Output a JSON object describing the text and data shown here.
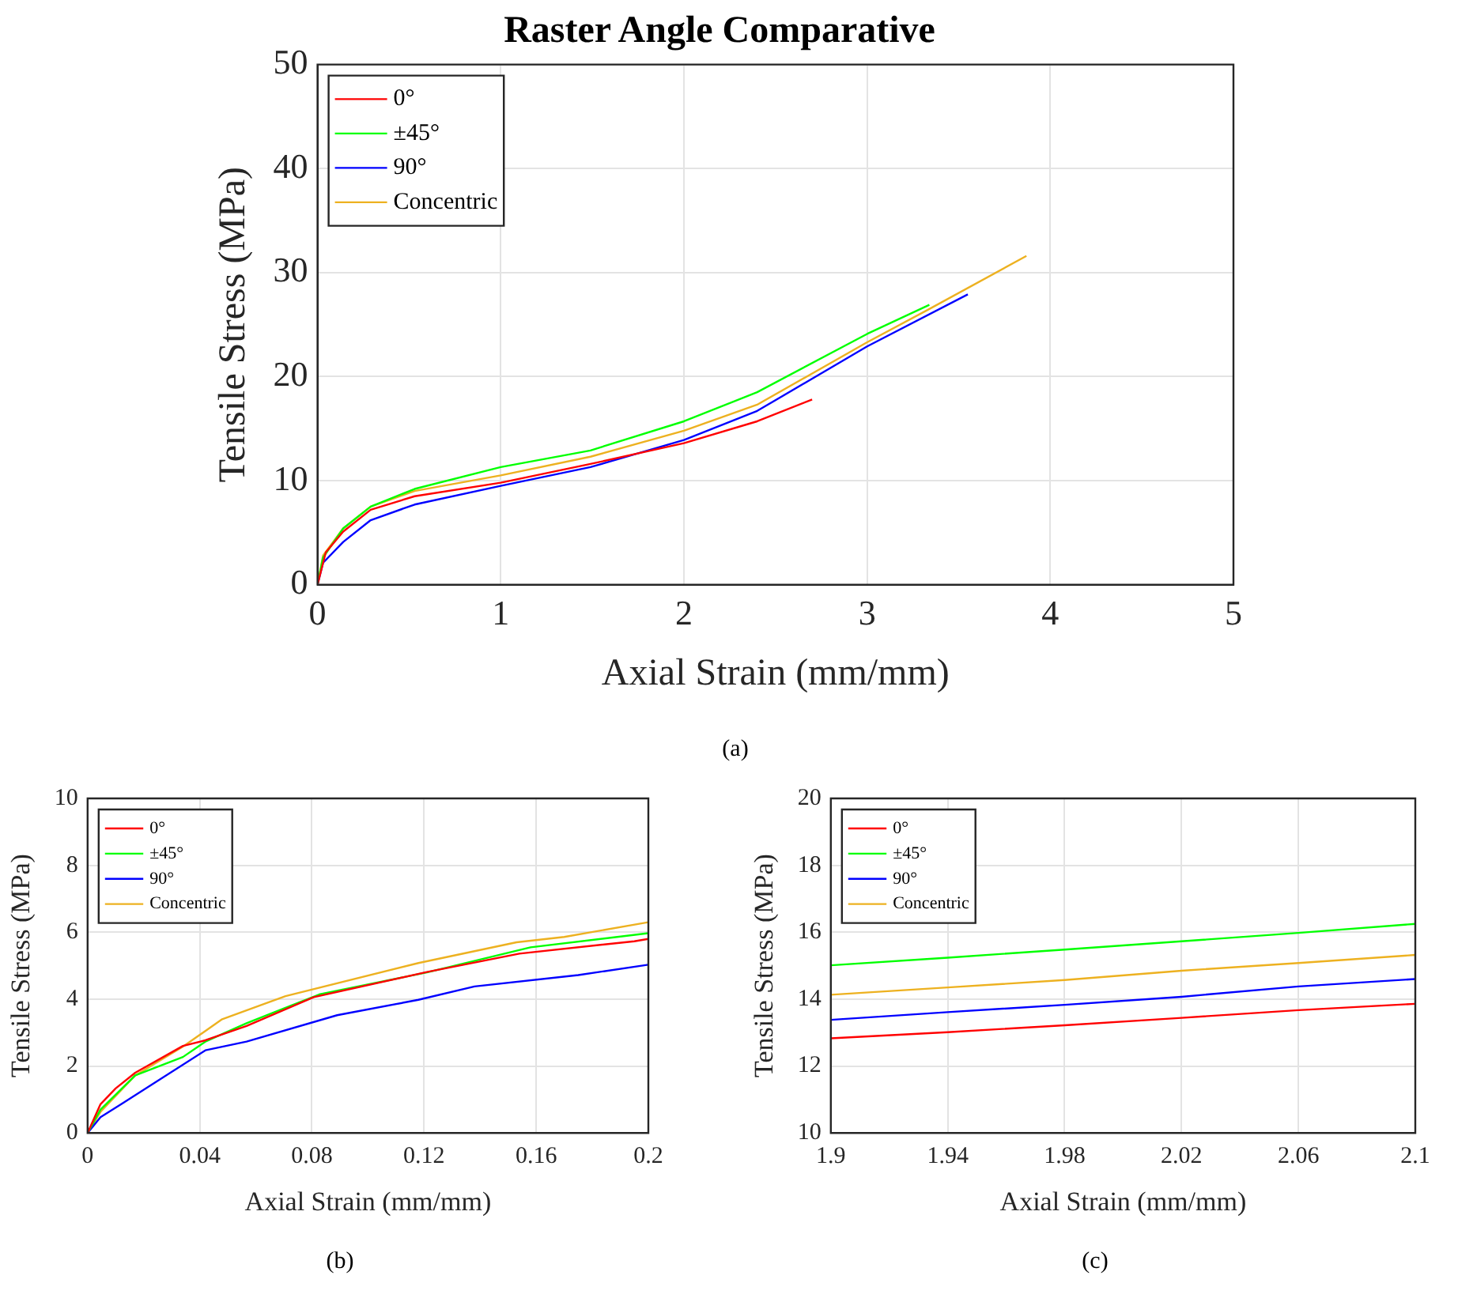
{
  "chart_data": [
    {
      "type": "line",
      "title": "Raster Angle Comparative",
      "xlabel": "Axial Strain (mm/mm)",
      "ylabel": "Tensile Stress (MPa)",
      "annotations": [
        "(a)"
      ],
      "xlim": [
        0,
        5
      ],
      "xticks": [
        0,
        1,
        2,
        3,
        4,
        5
      ],
      "ylim": [
        0,
        50
      ],
      "yticks": [
        0,
        10,
        20,
        30,
        40,
        50
      ],
      "grid": true,
      "legend": "top left",
      "line_style": "solid",
      "marker": "none",
      "series": [
        {
          "name": "0°",
          "color": "#ff0000",
          "x": [
            0,
            0.045,
            0.14,
            0.29,
            0.53,
            1.0,
            1.49,
            2.0,
            2.4,
            2.7
          ],
          "values": [
            0,
            3.1,
            5.1,
            7.2,
            8.5,
            9.8,
            11.6,
            13.6,
            15.7,
            17.8
          ]
        },
        {
          "name": "±45°",
          "color": "#00ff00",
          "x": [
            0,
            0.03,
            0.14,
            0.29,
            0.53,
            1.0,
            1.49,
            2.0,
            2.4,
            3.0,
            3.34
          ],
          "values": [
            0,
            2.6,
            5.4,
            7.5,
            9.2,
            11.3,
            12.9,
            15.7,
            18.5,
            24.1,
            26.9
          ]
        },
        {
          "name": "90°",
          "color": "#0000ff",
          "x": [
            0,
            0.03,
            0.14,
            0.29,
            0.53,
            1.0,
            1.49,
            2.0,
            2.4,
            3.0,
            3.55
          ],
          "values": [
            0,
            2.1,
            4.1,
            6.2,
            7.7,
            9.5,
            11.3,
            13.9,
            16.7,
            22.9,
            27.9
          ]
        },
        {
          "name": "Concentric",
          "color": "#edb120",
          "x": [
            0,
            0.03,
            0.14,
            0.29,
            0.53,
            1.0,
            1.49,
            2.0,
            2.4,
            3.0,
            3.33,
            3.87
          ],
          "values": [
            0,
            2.8,
            5.4,
            7.5,
            9.0,
            10.5,
            12.3,
            14.8,
            17.3,
            23.3,
            26.4,
            31.6
          ]
        }
      ]
    },
    {
      "type": "line",
      "xlabel": "Axial Strain (mm/mm)",
      "ylabel": "Tensile Stress (MPa)",
      "annotations": [
        "(b)"
      ],
      "xlim": [
        0,
        0.2
      ],
      "xticks": [
        0,
        0.04,
        0.08,
        0.12,
        0.16,
        0.2
      ],
      "ylim": [
        0,
        10
      ],
      "yticks": [
        0,
        2,
        4,
        6,
        8,
        10
      ],
      "grid": true,
      "legend": "top left",
      "line_style": "solid",
      "marker": "none",
      "series": [
        {
          "name": "0°",
          "color": "#ff0000",
          "x": [
            0,
            0.0046,
            0.01,
            0.017,
            0.034,
            0.042,
            0.0567,
            0.0807,
            0.121,
            0.154,
            0.195,
            0.2
          ],
          "values": [
            0,
            0.86,
            1.33,
            1.8,
            2.6,
            2.77,
            3.2,
            4.06,
            4.81,
            5.36,
            5.73,
            5.8
          ]
        },
        {
          "name": "±45°",
          "color": "#00ff00",
          "x": [
            0,
            0.0046,
            0.017,
            0.034,
            0.042,
            0.0567,
            0.0826,
            0.121,
            0.158,
            0.2
          ],
          "values": [
            0,
            0.7,
            1.72,
            2.27,
            2.73,
            3.28,
            4.14,
            4.8,
            5.55,
            5.97
          ]
        },
        {
          "name": "90°",
          "color": "#0000ff",
          "x": [
            0,
            0.0046,
            0.012,
            0.025,
            0.042,
            0.0567,
            0.089,
            0.118,
            0.138,
            0.175,
            0.2
          ],
          "values": [
            0,
            0.47,
            0.86,
            1.56,
            2.47,
            2.73,
            3.52,
            3.98,
            4.38,
            4.72,
            5.03
          ]
        },
        {
          "name": "Concentric",
          "color": "#edb120",
          "x": [
            0,
            0.0046,
            0.017,
            0.034,
            0.048,
            0.0706,
            0.118,
            0.153,
            0.17,
            0.2
          ],
          "values": [
            0,
            0.63,
            1.72,
            2.58,
            3.4,
            4.09,
            5.08,
            5.7,
            5.86,
            6.3
          ]
        }
      ]
    },
    {
      "type": "line",
      "xlabel": "Axial Strain (mm/mm)",
      "ylabel": "Tensile Stress (MPa)",
      "annotations": [
        "(c)"
      ],
      "xlim": [
        1.9,
        2.1
      ],
      "xticks": [
        1.9,
        1.94,
        1.98,
        2.02,
        2.06,
        2.1
      ],
      "ylim": [
        10,
        20
      ],
      "yticks": [
        10,
        12,
        14,
        16,
        18,
        20
      ],
      "grid": true,
      "legend": "top left",
      "line_style": "solid",
      "marker": "none",
      "series": [
        {
          "name": "0°",
          "color": "#ff0000",
          "x": [
            1.9,
            1.94,
            1.98,
            2.02,
            2.06,
            2.1
          ],
          "values": [
            12.83,
            13.01,
            13.22,
            13.44,
            13.67,
            13.86
          ]
        },
        {
          "name": "±45°",
          "color": "#00ff00",
          "x": [
            1.9,
            1.94,
            1.98,
            2.02,
            2.06,
            2.1
          ],
          "values": [
            15.01,
            15.24,
            15.48,
            15.73,
            15.98,
            16.25
          ]
        },
        {
          "name": "90°",
          "color": "#0000ff",
          "x": [
            1.9,
            1.94,
            1.98,
            2.02,
            2.06,
            2.1
          ],
          "values": [
            13.38,
            13.61,
            13.83,
            14.07,
            14.38,
            14.6
          ]
        },
        {
          "name": "Concentric",
          "color": "#edb120",
          "x": [
            1.9,
            1.94,
            1.98,
            2.02,
            2.06,
            2.1
          ],
          "values": [
            14.13,
            14.35,
            14.57,
            14.85,
            15.08,
            15.32
          ]
        }
      ]
    }
  ]
}
